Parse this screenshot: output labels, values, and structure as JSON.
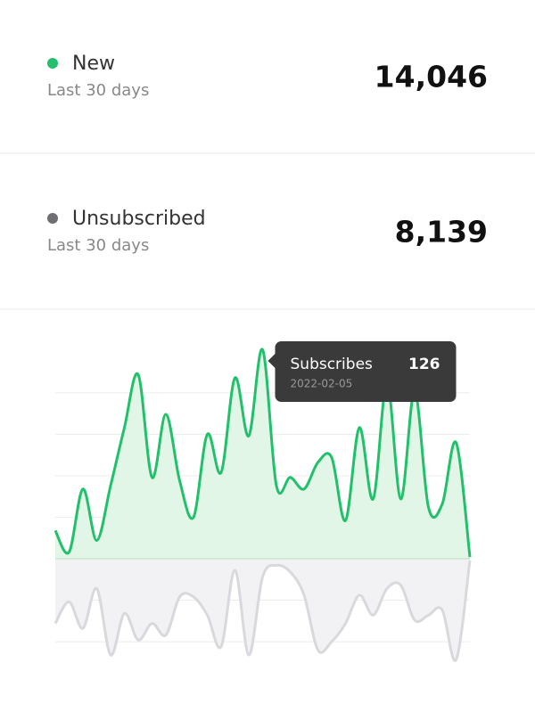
{
  "stats": [
    {
      "label": "New",
      "sublabel": "Last 30 days",
      "value": "14,046",
      "color": "#22c06b"
    },
    {
      "label": "Unsubscribed",
      "sublabel": "Last 30 days",
      "value": "8,139",
      "color": "#6e6e73"
    }
  ],
  "chart_data": {
    "type": "area",
    "series": [
      {
        "color": "#22c06b",
        "fill": "#e2f6e8",
        "values": [
          17,
          4,
          42,
          11,
          44,
          79,
          111,
          49,
          87,
          47,
          25,
          75,
          52,
          109,
          74,
          126,
          44,
          49,
          42,
          58,
          61,
          23,
          79,
          36,
          106,
          36,
          101,
          31,
          33,
          70,
          1
        ]
      },
      {
        "color": "#d9d9dd",
        "fill": "#f2f2f5",
        "values": [
          -39,
          -26,
          -42,
          -18,
          -58,
          -33,
          -49,
          -39,
          -46,
          -23,
          -23,
          -34,
          -53,
          -7,
          -58,
          -11,
          -4,
          -8,
          -22,
          -55,
          -50,
          -39,
          -22,
          -34,
          -18,
          -16,
          -37,
          -34,
          -31,
          -61,
          -1
        ]
      }
    ],
    "ylim": [
      -65,
      130
    ],
    "yticks": [
      -50,
      -25,
      0,
      25,
      50,
      75,
      100
    ],
    "grid": true,
    "tooltip": {
      "label": "Subscribes",
      "value": 126,
      "date": "2022-02-05",
      "index": 15
    }
  }
}
